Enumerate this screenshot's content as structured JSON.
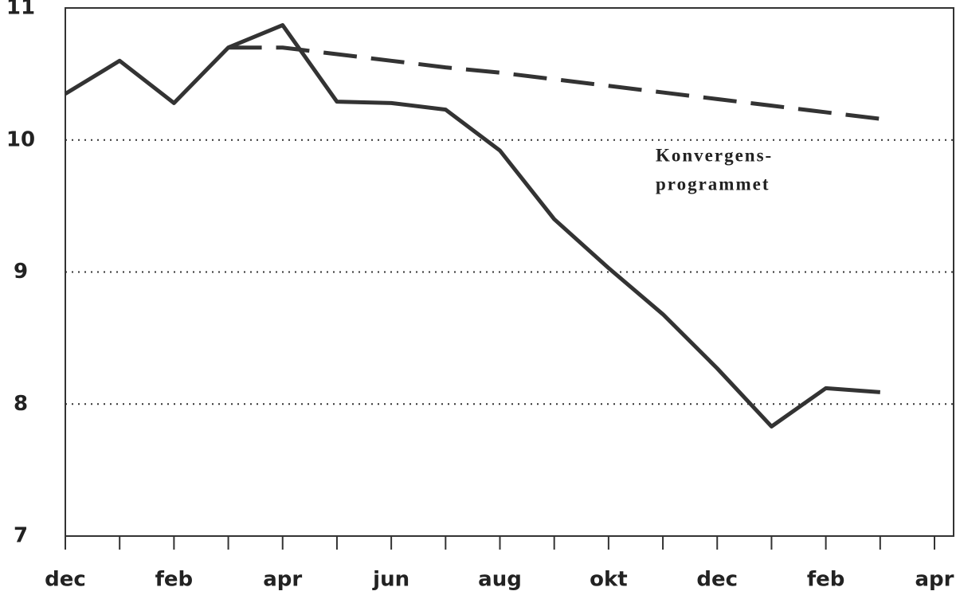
{
  "chart_data": {
    "type": "line",
    "categories": [
      "dec",
      null,
      "feb",
      null,
      "apr",
      null,
      "jun",
      null,
      "aug",
      null,
      "okt",
      null,
      "dec",
      null,
      "feb",
      null,
      "apr"
    ],
    "series": [
      {
        "color": "#333333",
        "dash": false,
        "values": [
          10.35,
          10.6,
          10.28,
          10.7,
          10.87,
          10.29,
          10.28,
          10.23,
          9.92,
          9.4,
          9.03,
          8.68,
          8.27,
          7.83,
          8.12,
          8.09,
          null
        ]
      },
      {
        "color": "#333333",
        "dash": true,
        "values": [
          null,
          null,
          null,
          10.7,
          10.7,
          10.65,
          10.6,
          10.55,
          10.51,
          10.46,
          10.41,
          10.36,
          10.31,
          10.26,
          10.21,
          10.16,
          null
        ]
      }
    ],
    "annotation": [
      "Konvergens-",
      "programmet"
    ],
    "ylim": [
      7,
      11
    ],
    "yticks": [
      7,
      8,
      9,
      10,
      11
    ],
    "grid": true
  }
}
